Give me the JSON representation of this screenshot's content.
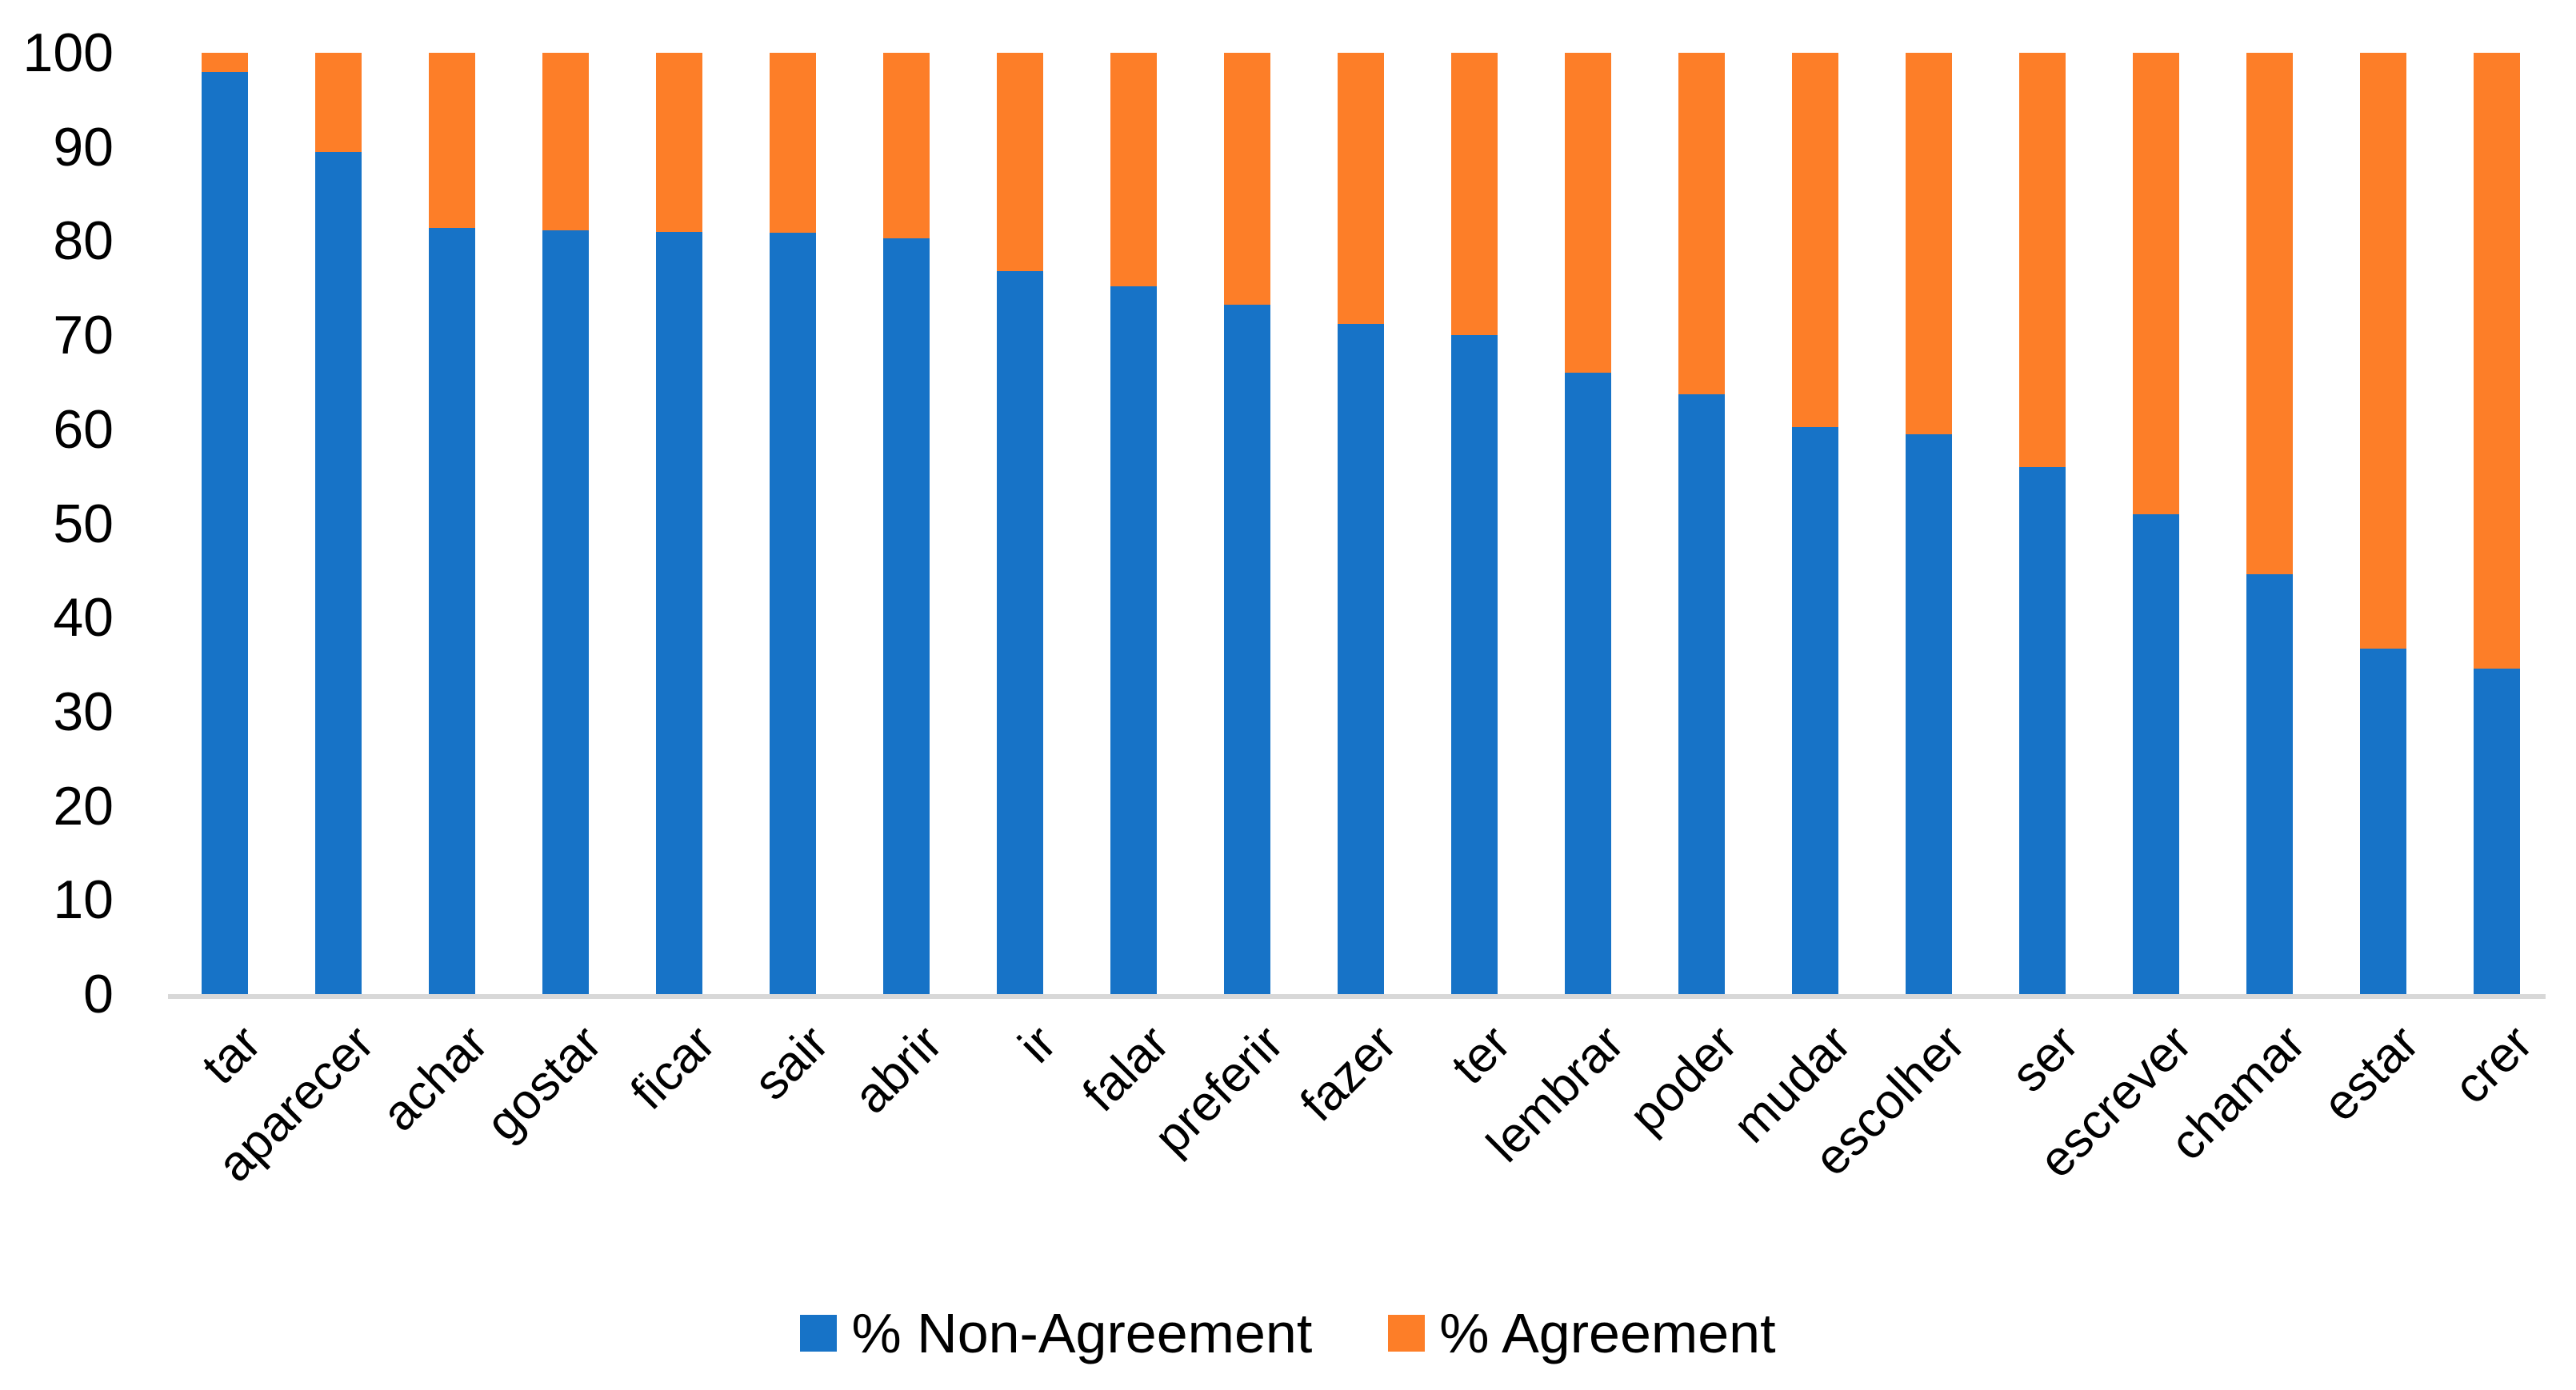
{
  "chart_data": {
    "type": "bar",
    "stacked": true,
    "title": "",
    "xlabel": "",
    "ylabel": "",
    "categories": [
      "tar",
      "aparecer",
      "achar",
      "gostar",
      "ficar",
      "sair",
      "abrir",
      "ir",
      "falar",
      "preferir",
      "fazer",
      "ter",
      "lembrar",
      "poder",
      "mudar",
      "escolher",
      "ser",
      "escrever",
      "chamar",
      "estar",
      "crer"
    ],
    "series": [
      {
        "name": "% Non-Agreement",
        "color": "#1773C7",
        "values": [
          98,
          89.5,
          81.4,
          81.1,
          81,
          80.9,
          80.3,
          76.8,
          75.2,
          73.2,
          71.2,
          70,
          66,
          63.7,
          60.2,
          59.5,
          56,
          51,
          44.6,
          36.7,
          34.6
        ]
      },
      {
        "name": "% Agreement",
        "color": "#FD7E28",
        "values": [
          2,
          10.5,
          18.6,
          18.9,
          19,
          19.1,
          19.7,
          23.2,
          24.8,
          26.8,
          28.8,
          30,
          34,
          36.3,
          39.8,
          40.5,
          44,
          49,
          55.4,
          63.3,
          65.4
        ]
      }
    ],
    "y_axis": {
      "min": 0,
      "max": 100,
      "step": 10,
      "tick_labels": [
        "0",
        "10",
        "20",
        "30",
        "40",
        "50",
        "60",
        "70",
        "80",
        "90",
        "100"
      ]
    },
    "legend_position": "bottom",
    "grid": false,
    "axis_line_color": "#D8D8D8",
    "background_color": "#FFFFFF",
    "text_color": "#000000"
  }
}
